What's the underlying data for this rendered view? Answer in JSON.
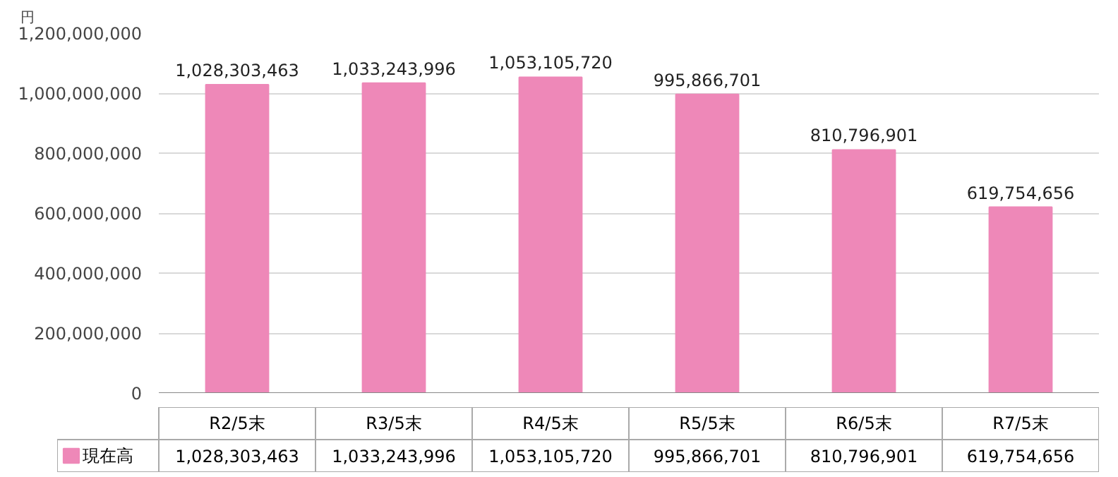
{
  "chart_data": {
    "type": "bar",
    "categories": [
      "R2/5末",
      "R3/5末",
      "R4/5末",
      "R5/5末",
      "R6/5末",
      "R7/5末"
    ],
    "series": [
      {
        "name": "現在高",
        "color": "#ee88b8",
        "values": [
          1028303463,
          1033243996,
          1053105720,
          995866701,
          810796901,
          619754656
        ]
      }
    ],
    "ylim": [
      0,
      1200000000
    ],
    "yticks": [
      0,
      {
        "value": 200000000,
        "label": "200,000,000"
      },
      {
        "value": 400000000,
        "label": "400,000,000"
      },
      {
        "value": 600000000,
        "label": "600,000,000"
      },
      {
        "value": 800000000,
        "label": "800,000,000"
      },
      {
        "value": 1000000000,
        "label": "1,000,000,000"
      },
      {
        "value": 1200000000,
        "label": "1,200,000,000"
      }
    ],
    "value_labels": [
      "1,028,303,463",
      "1,033,243,996",
      "1,053,105,720",
      "995,866,701",
      "810,796,901",
      "619,754,656"
    ],
    "grid": "y",
    "legend": "bottom",
    "annotations": [
      "円"
    ]
  }
}
